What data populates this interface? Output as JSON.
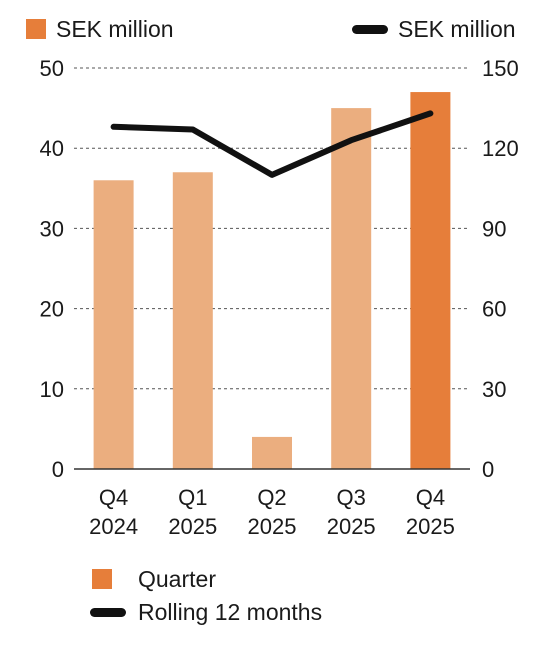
{
  "chart_data": {
    "type": "bar",
    "categories": [
      [
        "Q4",
        "2024"
      ],
      [
        "Q1",
        "2025"
      ],
      [
        "Q2",
        "2025"
      ],
      [
        "Q3",
        "2025"
      ],
      [
        "Q4",
        "2025"
      ]
    ],
    "left_axis": {
      "label": "SEK million",
      "ylim": [
        0,
        50
      ],
      "ticks": [
        0,
        10,
        20,
        30,
        40,
        50
      ]
    },
    "right_axis": {
      "label": "SEK million",
      "ylim": [
        0,
        150
      ],
      "ticks": [
        0,
        30,
        60,
        90,
        120,
        150
      ]
    },
    "grid": true,
    "series": [
      {
        "name": "Quarter",
        "type": "bar",
        "axis": "left",
        "values": [
          36,
          37,
          4,
          45,
          47
        ],
        "color": "#e67e3a",
        "light_color": "#ebae7f"
      },
      {
        "name": "Rolling 12 months",
        "type": "line",
        "axis": "right",
        "values": [
          128,
          127,
          110,
          123,
          133
        ],
        "color": "#111111"
      }
    ],
    "legend_placement": "bottom-left"
  }
}
